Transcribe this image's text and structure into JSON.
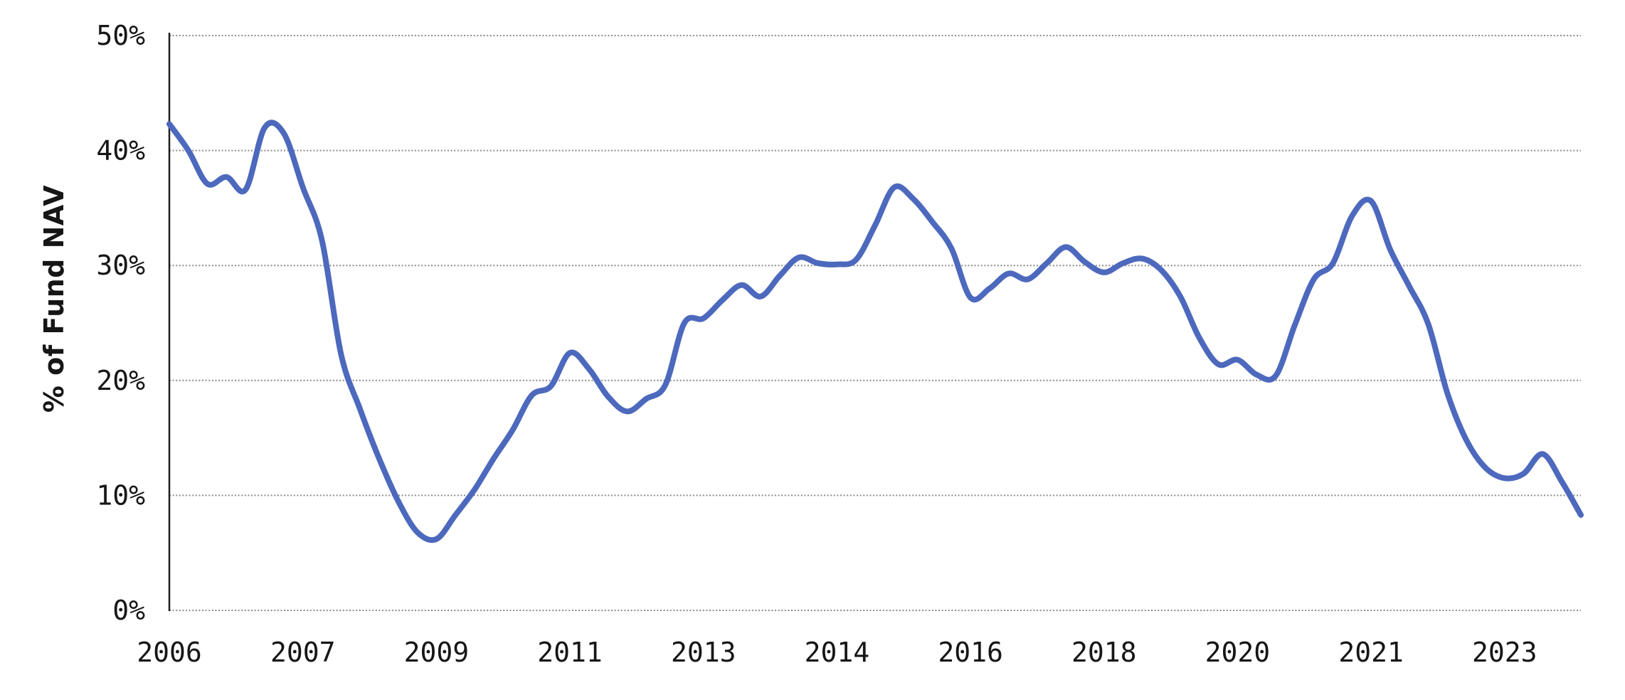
{
  "chart_data": {
    "type": "line",
    "title": "",
    "xlabel": "",
    "ylabel": "% of Fund NAV",
    "x_tick_labels": [
      "2006",
      "2007",
      "2009",
      "2011",
      "2013",
      "2014",
      "2016",
      "2018",
      "2020",
      "2021",
      "2023"
    ],
    "x_tick_point_index": [
      0,
      7,
      14,
      21,
      28,
      35,
      42,
      49,
      56,
      63,
      70
    ],
    "y_tick_labels": [
      "0%",
      "10%",
      "20%",
      "30%",
      "40%",
      "50%"
    ],
    "y_tick_values": [
      0,
      10,
      20,
      30,
      40,
      50
    ],
    "ylim": [
      0,
      50
    ],
    "grid": {
      "direction": "horizontal",
      "style": "dotted",
      "color": "#8C8C8C"
    },
    "legend_position": "none",
    "axis_color": "#1F1F1F",
    "text_color": "#161616",
    "series": [
      {
        "name": "% of Fund NAV",
        "color": "#4D69BD",
        "line_width": 8,
        "smoothing": "spline",
        "x_start_period": "2006 Q1",
        "x_frequency": "quarterly",
        "values": [
          42.3,
          40.0,
          37.1,
          37.7,
          36.6,
          42.0,
          41.5,
          36.8,
          32.2,
          22.3,
          17.5,
          13.2,
          9.5,
          6.8,
          6.2,
          8.3,
          10.5,
          13.2,
          15.7,
          18.7,
          19.5,
          22.4,
          21.0,
          18.6,
          17.3,
          18.4,
          19.6,
          25.0,
          25.4,
          27.0,
          28.3,
          27.3,
          29.1,
          30.7,
          30.2,
          30.1,
          30.5,
          33.5,
          36.8,
          35.8,
          33.8,
          31.5,
          27.2,
          28.0,
          29.3,
          28.8,
          30.2,
          31.6,
          30.3,
          29.4,
          30.2,
          30.6,
          29.6,
          27.3,
          23.7,
          21.4,
          21.8,
          20.5,
          20.4,
          24.8,
          28.8,
          30.2,
          34.3,
          35.6,
          31.4,
          28.2,
          24.9,
          18.9,
          14.8,
          12.4,
          11.5,
          11.9,
          13.6,
          11.2,
          8.3
        ]
      }
    ]
  }
}
